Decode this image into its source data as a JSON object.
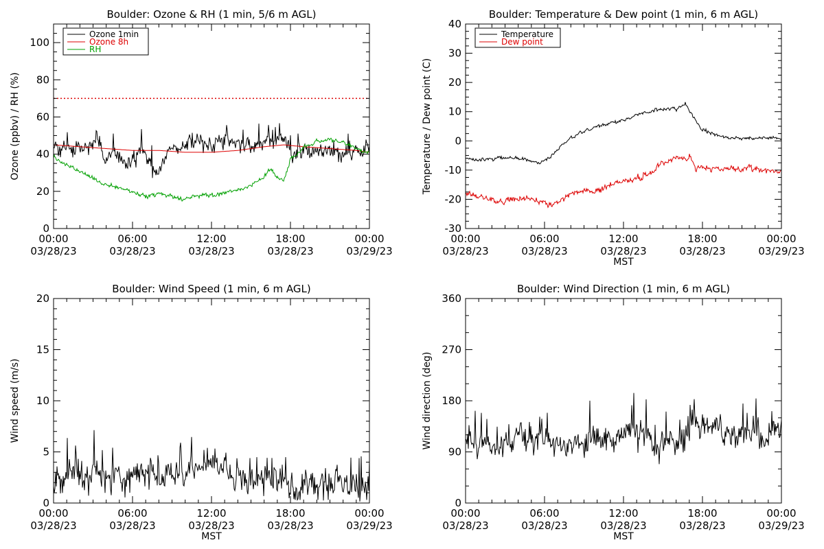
{
  "colors": {
    "black": "#000000",
    "red": "#dd0000",
    "green": "#00a000",
    "axes": "#000000"
  },
  "chart_data": [
    {
      "id": "ozone-rh",
      "type": "line",
      "title": "Boulder: Ozone & RH (1 min, 5/6 m AGL)",
      "ylabel": "Ozone (ppbv) / RH (%)",
      "xlabel": "",
      "ylim": [
        0,
        110
      ],
      "yticks": [
        0,
        20,
        40,
        60,
        80,
        100
      ],
      "yminor": 4,
      "xlim": [
        0,
        24
      ],
      "xticks": [
        0,
        6,
        12,
        18,
        24
      ],
      "xtick_labels": [
        [
          "00:00",
          "03/28/23"
        ],
        [
          "06:00",
          "03/28/23"
        ],
        [
          "12:00",
          "03/28/23"
        ],
        [
          "18:00",
          "03/28/23"
        ],
        [
          "00:00",
          "03/29/23"
        ]
      ],
      "legend": {
        "placement": "top-left",
        "entries": [
          {
            "label": "Ozone 1min",
            "color": "#000000"
          },
          {
            "label": "Ozone 8h",
            "color": "#dd0000"
          },
          {
            "label": "RH",
            "color": "#00a000"
          }
        ]
      },
      "series": [
        {
          "name": "Ozone 1min",
          "color": "#000000",
          "noise": 2.4,
          "spike": 5,
          "x": [
            0,
            1,
            2,
            3,
            3.5,
            4,
            4.5,
            5,
            5.5,
            6,
            6.5,
            7,
            7.5,
            8,
            8.5,
            9,
            10,
            11,
            12,
            13,
            14,
            15,
            16,
            17,
            17.5,
            18,
            19,
            20,
            21,
            22,
            23,
            24
          ],
          "y": [
            45,
            43,
            44,
            45,
            42,
            38,
            42,
            40,
            36,
            35,
            42,
            40,
            34,
            30,
            38,
            44,
            44,
            47,
            45,
            48,
            46,
            44,
            46,
            48,
            47,
            40,
            42,
            41,
            40,
            41,
            42,
            43
          ]
        },
        {
          "name": "Ozone 8h",
          "color": "#dd0000",
          "noise": 0,
          "spike": 0,
          "x": [
            0,
            2,
            4,
            6,
            8,
            10,
            12,
            14,
            16,
            17.5,
            19,
            21,
            23,
            24
          ],
          "y": [
            45,
            44,
            43,
            42,
            42,
            41,
            41,
            42,
            44,
            45,
            44,
            43,
            42,
            41
          ]
        },
        {
          "name": "RH",
          "color": "#00a000",
          "noise": 0.7,
          "spike": 0,
          "x": [
            0,
            1,
            2,
            3,
            4,
            5,
            6,
            7,
            8,
            9,
            10,
            11,
            12,
            13,
            14,
            15,
            16,
            16.5,
            17,
            17.5,
            18,
            19,
            20,
            21,
            22,
            23,
            24
          ],
          "y": [
            38,
            34,
            31,
            27,
            23,
            22,
            20,
            17,
            19,
            17,
            16,
            18,
            18,
            19,
            21,
            23,
            28,
            32,
            28,
            25,
            38,
            43,
            47,
            48,
            46,
            43,
            40
          ]
        }
      ],
      "reference_line": {
        "value": 70,
        "color": "#dd0000",
        "style": "dotted"
      }
    },
    {
      "id": "temp-dew",
      "type": "line",
      "title": "Boulder: Temperature & Dew point (1 min, 6 m AGL)",
      "ylabel": "Temperature / Dew point (C)",
      "xlabel": "MST",
      "ylim": [
        -30,
        40
      ],
      "yticks": [
        -30,
        -20,
        -10,
        0,
        10,
        20,
        30,
        40
      ],
      "yminor": 4,
      "xlim": [
        0,
        24
      ],
      "xticks": [
        0,
        6,
        12,
        18,
        24
      ],
      "xtick_labels": [
        [
          "00:00",
          "03/28/23"
        ],
        [
          "06:00",
          "03/28/23"
        ],
        [
          "12:00",
          "03/28/23"
        ],
        [
          "18:00",
          "03/28/23"
        ],
        [
          "00:00",
          "03/29/23"
        ]
      ],
      "legend": {
        "placement": "top-left",
        "entries": [
          {
            "label": "Temperature",
            "color": "#000000"
          },
          {
            "label": "Dew point",
            "color": "#dd0000"
          }
        ]
      },
      "series": [
        {
          "name": "Temperature",
          "color": "#000000",
          "noise": 0.35,
          "spike": 0,
          "x": [
            0,
            1,
            2,
            3,
            4,
            5,
            5.5,
            6,
            7,
            8,
            9,
            10,
            11,
            12,
            13,
            14,
            15,
            16,
            16.7,
            17,
            17.5,
            18,
            19,
            20,
            21,
            22,
            23,
            24
          ],
          "y": [
            -6,
            -6.5,
            -6,
            -5.5,
            -6,
            -7,
            -7.5,
            -7,
            -3,
            1,
            3,
            5,
            6,
            7,
            9,
            10,
            11,
            11,
            13,
            10,
            7,
            4,
            2,
            1,
            1,
            1,
            1,
            0.5
          ]
        },
        {
          "name": "Dew point",
          "color": "#dd0000",
          "noise": 0.6,
          "spike": 0,
          "x": [
            0,
            1,
            2,
            3,
            4,
            5,
            6,
            6.5,
            7,
            8,
            9,
            10,
            11,
            12,
            13,
            14,
            15,
            16,
            17,
            17.5,
            18,
            19,
            20,
            21,
            22,
            23,
            24
          ],
          "y": [
            -18,
            -19,
            -20,
            -21,
            -20,
            -20,
            -21,
            -22,
            -21,
            -18,
            -17,
            -17,
            -15,
            -14,
            -13,
            -11,
            -8,
            -6,
            -6,
            -9,
            -9.5,
            -9.5,
            -9.5,
            -9.5,
            -9.5,
            -10,
            -10.5
          ]
        }
      ]
    },
    {
      "id": "wind-speed",
      "type": "line",
      "title": "Boulder: Wind Speed (1 min, 6 m AGL)",
      "ylabel": "Wind speed (m/s)",
      "xlabel": "MST",
      "ylim": [
        0,
        20
      ],
      "yticks": [
        0,
        5,
        10,
        15,
        20
      ],
      "yminor": 5,
      "xlim": [
        0,
        24
      ],
      "xticks": [
        0,
        6,
        12,
        18,
        24
      ],
      "xtick_labels": [
        [
          "00:00",
          "03/28/23"
        ],
        [
          "06:00",
          "03/28/23"
        ],
        [
          "12:00",
          "03/28/23"
        ],
        [
          "18:00",
          "03/28/23"
        ],
        [
          "00:00",
          "03/29/23"
        ]
      ],
      "series": [
        {
          "name": "Wind speed",
          "color": "#000000",
          "noise": 0.9,
          "spike": 1.8,
          "x": [
            0,
            1,
            2,
            3,
            4,
            5,
            6,
            7,
            8,
            9,
            10,
            11,
            12,
            12.5,
            13,
            14,
            15,
            16,
            17,
            18,
            19,
            20,
            21,
            22,
            23,
            24
          ],
          "y": [
            2.5,
            2.3,
            2.7,
            3.0,
            3.2,
            2.8,
            2.6,
            2.8,
            2.9,
            3.0,
            3.0,
            3.2,
            3.4,
            3.5,
            3.0,
            2.6,
            2.5,
            2.4,
            2.2,
            1.8,
            1.7,
            1.8,
            2.0,
            1.9,
            1.8,
            1.5
          ]
        }
      ]
    },
    {
      "id": "wind-direction",
      "type": "line",
      "title": "Boulder: Wind Direction (1 min, 6 m AGL)",
      "ylabel": "Wind direction (deg)",
      "xlabel": "MST",
      "ylim": [
        0,
        360
      ],
      "yticks": [
        0,
        90,
        180,
        270,
        360
      ],
      "yminor": 3,
      "xlim": [
        0,
        24
      ],
      "xticks": [
        0,
        6,
        12,
        18,
        24
      ],
      "xtick_labels": [
        [
          "00:00",
          "03/28/23"
        ],
        [
          "06:00",
          "03/28/23"
        ],
        [
          "12:00",
          "03/28/23"
        ],
        [
          "18:00",
          "03/28/23"
        ],
        [
          "00:00",
          "03/29/23"
        ]
      ],
      "series": [
        {
          "name": "Wind direction",
          "color": "#000000",
          "noise": 14,
          "spike": 30,
          "x": [
            0,
            1,
            2,
            3,
            4,
            5,
            6,
            7,
            8,
            9,
            10,
            11,
            12,
            13,
            14,
            14.5,
            15,
            16,
            16.5,
            17,
            18,
            19,
            20,
            21,
            22,
            23,
            24
          ],
          "y": [
            115,
            105,
            100,
            105,
            110,
            108,
            105,
            108,
            110,
            112,
            112,
            118,
            125,
            130,
            120,
            100,
            110,
            105,
            110,
            135,
            130,
            128,
            125,
            120,
            118,
            115,
            150
          ]
        }
      ]
    }
  ]
}
